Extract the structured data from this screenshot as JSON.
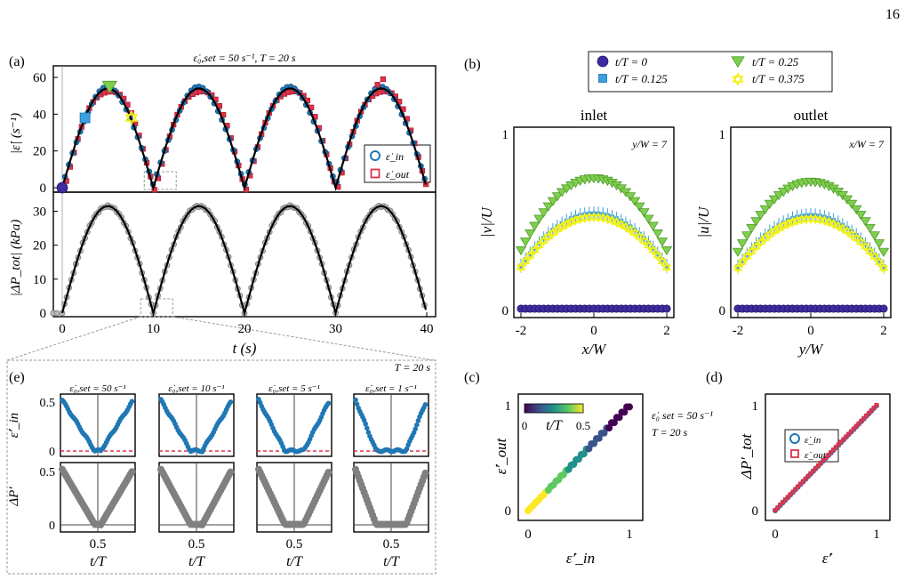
{
  "page_number": "16",
  "panels": {
    "a": {
      "label": "(a)",
      "title": "ε̇₀,set = 50 s⁻¹, T = 20 s",
      "ylabel_top": "|ε̇| (s⁻¹)",
      "ylabel_bottom": "|ΔP_tot| (kPa)",
      "xlabel": "t (s)",
      "legend": [
        "ε̇_in",
        "ε̇_out"
      ]
    },
    "b": {
      "label": "(b)",
      "inlet_title": "inlet",
      "outlet_title": "outlet",
      "inlet_note": "y/W = 7",
      "outlet_note": "x/W = 7",
      "inlet_ylabel": "|v|/U",
      "outlet_ylabel": "|u|/U",
      "inlet_xlabel": "x/W",
      "outlet_xlabel": "y/W",
      "legend": [
        "t/T = 0",
        "t/T = 0.125",
        "t/T = 0.25",
        "t/T = 0.375"
      ]
    },
    "c": {
      "label": "(c)",
      "xlabel": "ε̇′_in",
      "ylabel": "ε̇′_out",
      "colorbar_label": "t/T",
      "colorbar_ticks": [
        "0",
        "0.5"
      ],
      "note1": "ε̇₀ set = 50 s⁻¹",
      "note2": "T = 20 s"
    },
    "d": {
      "label": "(d)",
      "xlabel": "ε̇′",
      "ylabel": "ΔP′_tot",
      "legend": [
        "ε̇_in",
        "ε̇_out"
      ]
    },
    "e": {
      "label": "(e)",
      "note": "T = 20 s",
      "col_titles": [
        "ε̇₀,set = 50 s⁻¹",
        "ε̇₀,set = 10 s⁻¹",
        "ε̇₀,set = 5 s⁻¹",
        "ε̇₀,set = 1 s⁻¹"
      ],
      "ylabel_top": "ε̇′_in",
      "ylabel_bottom": "ΔP′",
      "xlabel": "t/T"
    }
  },
  "colors": {
    "in": "#1f77b4",
    "out": "#e0334a",
    "pressure": "#808080",
    "fit": "#000000",
    "t0": "#3f2aa0",
    "t0125": "#3aa0e0",
    "t025": "#7fcf4f",
    "t0375": "#f2f01c"
  },
  "chart_data": [
    {
      "id": "a-top",
      "type": "scatter",
      "xlabel": "t (s)",
      "ylabel": "|ε̇| (s⁻¹)",
      "xlim": [
        0,
        40
      ],
      "ylim": [
        0,
        60
      ],
      "xticks": [
        0,
        10,
        20,
        30,
        40
      ],
      "yticks": [
        0,
        20,
        40,
        60
      ],
      "model": "|50 sin(π t / 10)|",
      "series": [
        {
          "name": "ε̇_in"
        },
        {
          "name": "ε̇_out"
        }
      ],
      "highlight_points": [
        {
          "x": 0,
          "y": 0
        },
        {
          "x": 2.5,
          "y": 38
        },
        {
          "x": 5,
          "y": 54
        },
        {
          "x": 7.5,
          "y": 38
        }
      ]
    },
    {
      "id": "a-bottom",
      "type": "scatter",
      "xlabel": "t (s)",
      "ylabel": "|ΔP_tot| (kPa)",
      "xlim": [
        0,
        40
      ],
      "ylim": [
        0,
        33
      ],
      "xticks": [
        0,
        10,
        20,
        30,
        40
      ],
      "yticks": [
        0,
        10,
        20,
        30
      ],
      "model": "|31.5 sin(π t / 10)|"
    },
    {
      "id": "b-inlet",
      "type": "scatter",
      "xlabel": "x/W",
      "ylabel": "|v|/U",
      "xlim": [
        -2,
        2
      ],
      "ylim": [
        0,
        1
      ],
      "xticks": [
        -2,
        0,
        2
      ],
      "yticks": [
        0,
        1
      ],
      "series": [
        {
          "name": "t/T = 0",
          "peak": 0.0
        },
        {
          "name": "t/T = 0.125",
          "peak": 0.53
        },
        {
          "name": "t/T = 0.25",
          "peak": 0.73
        },
        {
          "name": "t/T = 0.375",
          "peak": 0.51
        }
      ]
    },
    {
      "id": "b-outlet",
      "type": "scatter",
      "xlabel": "y/W",
      "ylabel": "|u|/U",
      "xlim": [
        -2,
        2
      ],
      "ylim": [
        0,
        1
      ],
      "xticks": [
        -2,
        0,
        2
      ],
      "yticks": [
        0,
        1
      ],
      "series": [
        {
          "name": "t/T = 0",
          "peak": 0.0
        },
        {
          "name": "t/T = 0.125",
          "peak": 0.52
        },
        {
          "name": "t/T = 0.25",
          "peak": 0.71
        },
        {
          "name": "t/T = 0.375",
          "peak": 0.5
        }
      ]
    },
    {
      "id": "c",
      "type": "scatter",
      "xlim": [
        0,
        1
      ],
      "ylim": [
        0,
        1
      ],
      "xticks": [
        0,
        1
      ],
      "yticks": [
        0,
        1
      ],
      "relation": "y = x",
      "colorbar": [
        0,
        0.5
      ]
    },
    {
      "id": "d",
      "type": "scatter",
      "xlim": [
        0,
        1
      ],
      "ylim": [
        0,
        1
      ],
      "xticks": [
        0,
        1
      ],
      "yticks": [
        0,
        1
      ],
      "relation": "y = x"
    },
    {
      "id": "e",
      "type": "scatter",
      "xticks": [
        0.5
      ],
      "yticks": [
        0,
        0.5
      ],
      "columns": [
        "50 s⁻¹",
        "10 s⁻¹",
        "5 s⁻¹",
        "1 s⁻¹"
      ]
    }
  ]
}
